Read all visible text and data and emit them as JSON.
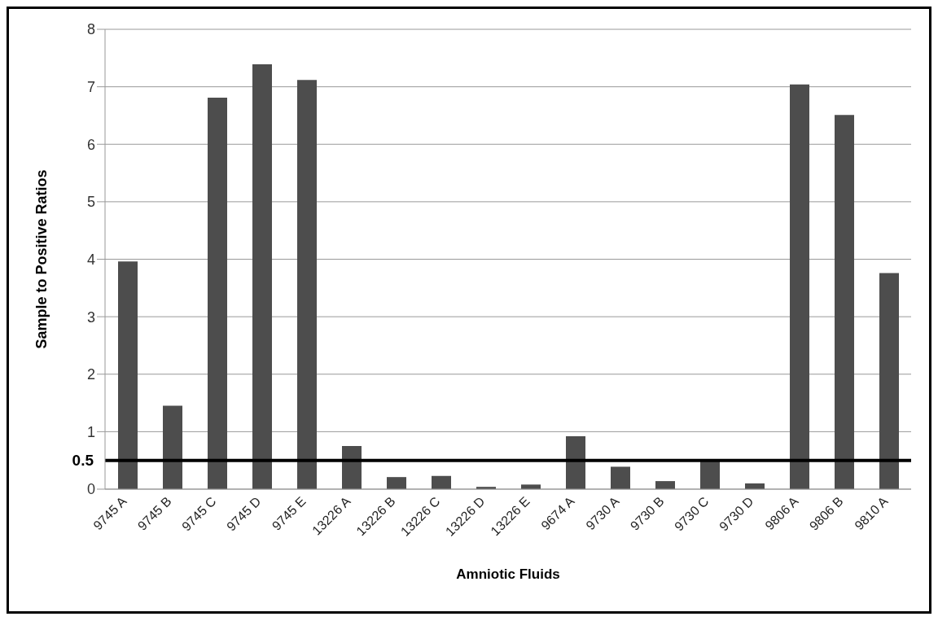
{
  "chart_data": {
    "type": "bar",
    "xlabel": "Amniotic Fluids",
    "ylabel": "Sample to Positive Ratios",
    "categories": [
      "9745 A",
      "9745 B",
      "9745 C",
      "9745 D",
      "9745 E",
      "13226 A",
      "13226 B",
      "13226 C",
      "13226 D",
      "13226 E",
      "9674 A",
      "9730 A",
      "9730 B",
      "9730 C",
      "9730 D",
      "9806 A",
      "9806 B",
      "9810 A"
    ],
    "values": [
      3.96,
      1.45,
      6.81,
      7.39,
      7.12,
      0.75,
      0.21,
      0.23,
      0.04,
      0.08,
      0.92,
      0.39,
      0.14,
      0.52,
      0.1,
      7.04,
      6.51,
      3.76
    ],
    "color": "#4d4d4d",
    "ylim": [
      0,
      8
    ],
    "yticks": [
      0,
      1,
      2,
      3,
      4,
      5,
      6,
      7,
      8
    ],
    "grid": "y",
    "legend": false,
    "ref_lines": [
      {
        "axis": "y",
        "value": 0.5,
        "label": "0.5",
        "color": "#000000",
        "line_style": "solid"
      }
    ]
  }
}
